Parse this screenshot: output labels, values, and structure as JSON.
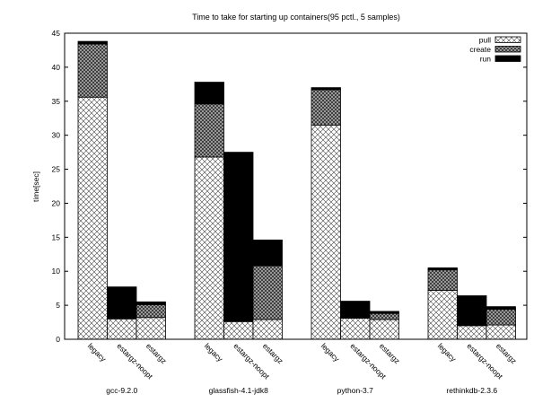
{
  "chart_data": {
    "type": "bar",
    "stacked": true,
    "title": "Time to take for starting up containers(95 pctl., 5 samples)",
    "xlabel": "",
    "ylabel": "time[sec]",
    "ylim": [
      0,
      45
    ],
    "yticks": [
      0,
      5,
      10,
      15,
      20,
      25,
      30,
      35,
      40,
      45
    ],
    "grid": false,
    "legend_position": "top-right",
    "groups": [
      "gcc-9.2.0",
      "glassfish-4.1-jdk8",
      "python-3.7",
      "rethinkdb-2.3.6"
    ],
    "categories": [
      "legacy",
      "estargz-noopt",
      "estargz"
    ],
    "series": [
      {
        "name": "pull",
        "pattern": "cross-hatch-light",
        "values": [
          [
            35.6,
            3.0,
            3.2
          ],
          [
            26.8,
            2.6,
            2.9
          ],
          [
            31.5,
            3.1,
            2.9
          ],
          [
            7.2,
            2.0,
            2.1
          ]
        ]
      },
      {
        "name": "create",
        "pattern": "cross-hatch-dense",
        "values": [
          [
            7.8,
            0.1,
            1.9
          ],
          [
            7.8,
            0.1,
            7.9
          ],
          [
            5.2,
            0.1,
            0.9
          ],
          [
            3.0,
            0.1,
            2.3
          ]
        ]
      },
      {
        "name": "run",
        "pattern": "solid-black",
        "values": [
          [
            0.4,
            4.6,
            0.4
          ],
          [
            3.2,
            24.8,
            3.8
          ],
          [
            0.3,
            2.4,
            0.3
          ],
          [
            0.3,
            4.3,
            0.4
          ]
        ]
      }
    ]
  }
}
